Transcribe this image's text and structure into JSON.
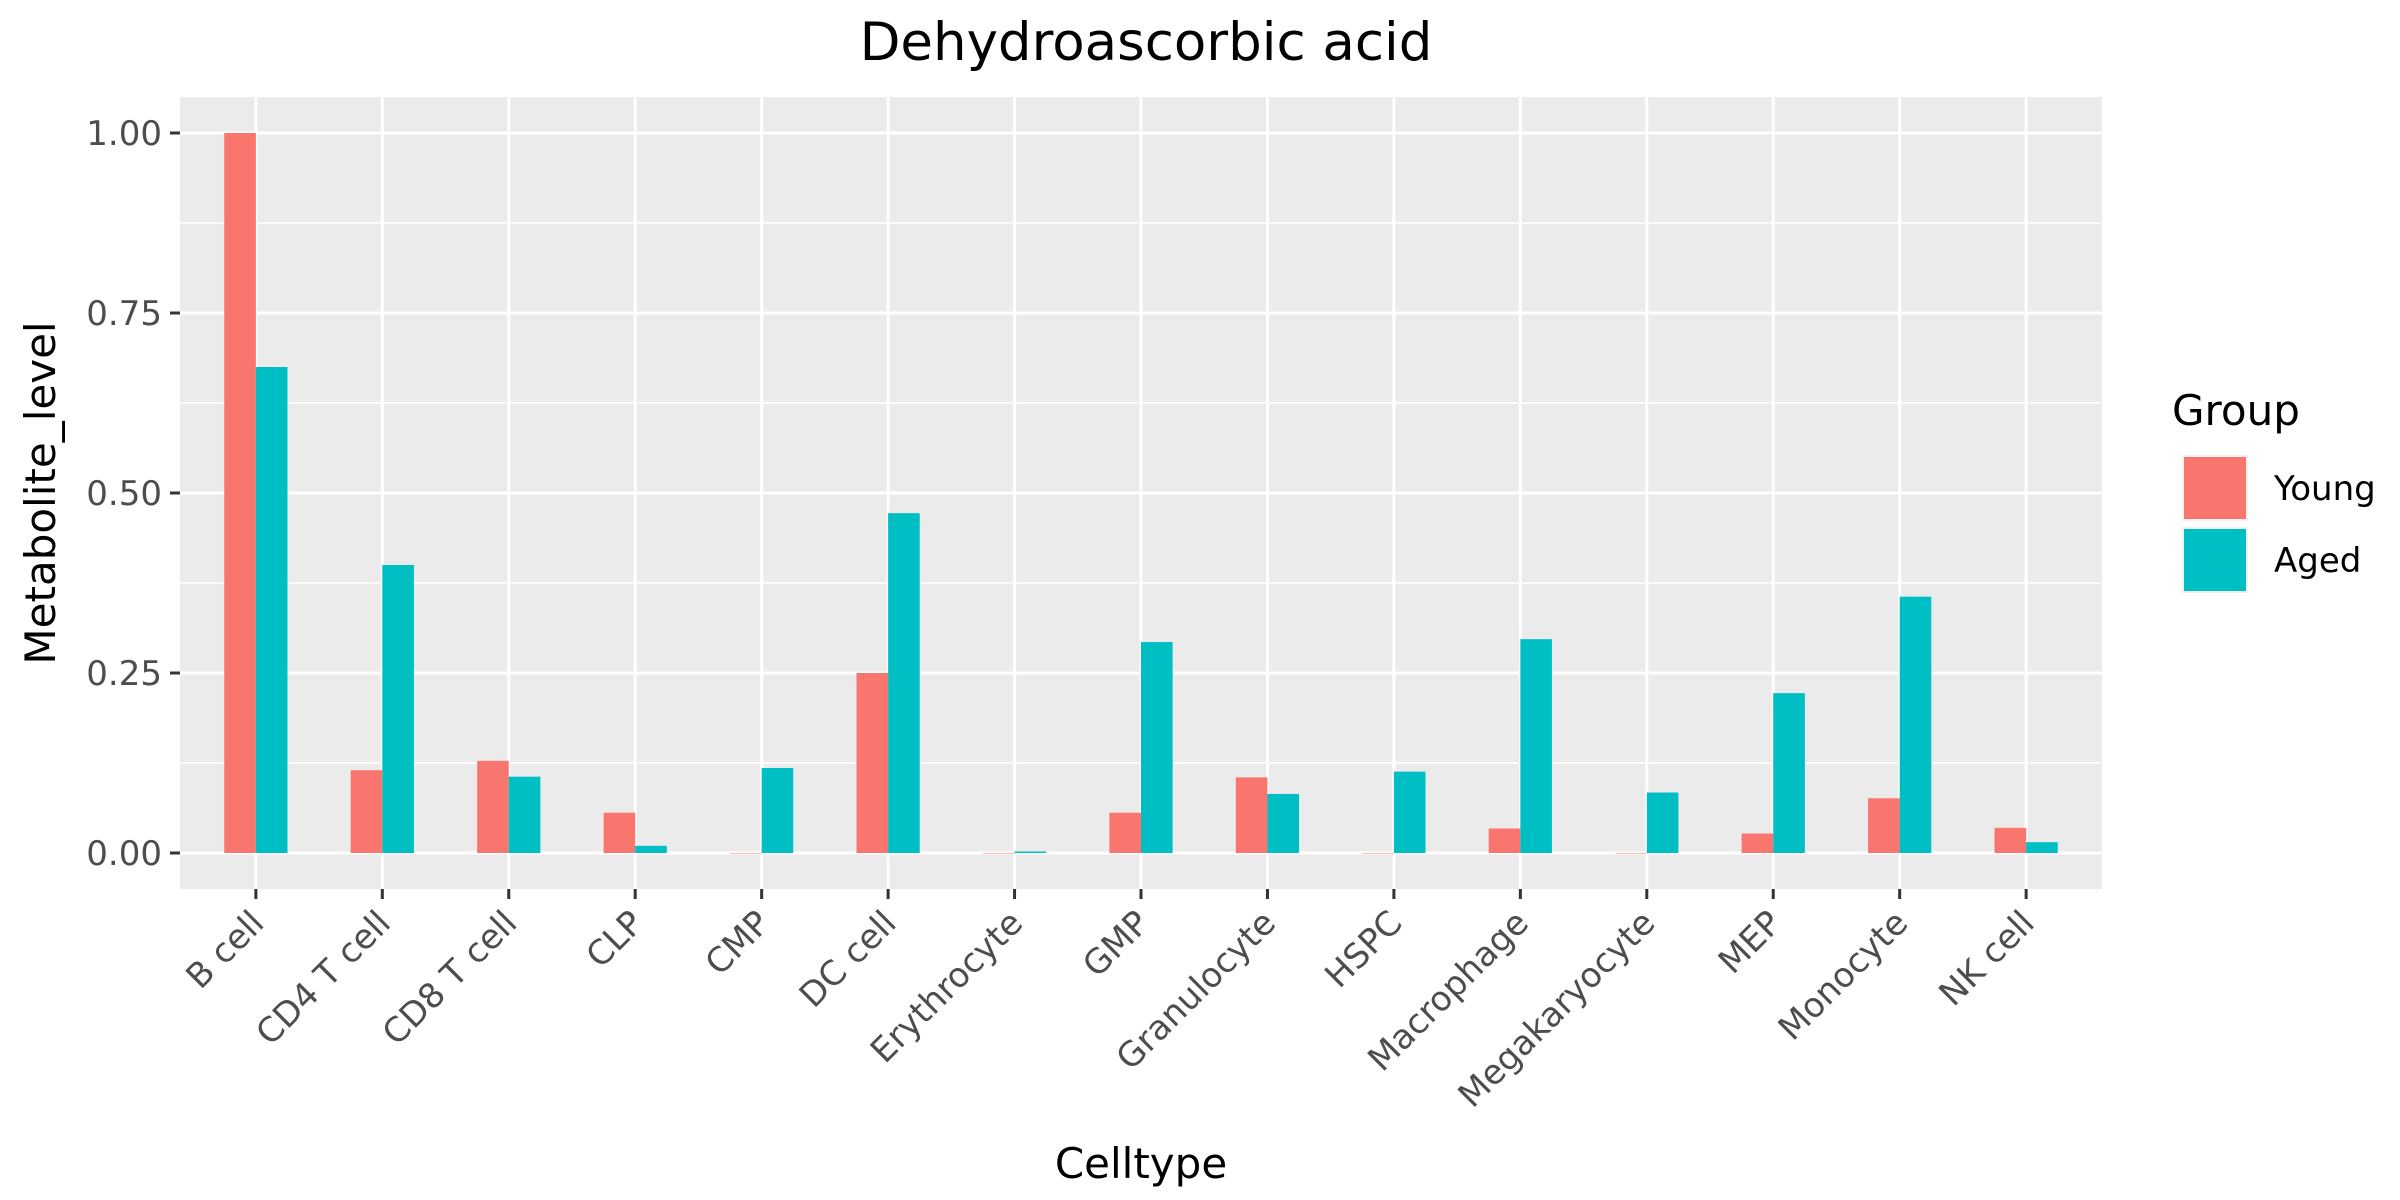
{
  "chart_data": {
    "type": "bar",
    "title": "Dehydroascorbic acid",
    "xlabel": "Celltype",
    "ylabel": "Metabolite_level",
    "categories": [
      "B cell",
      "CD4 T cell",
      "CD8 T cell",
      "CLP",
      "CMP",
      "DC cell",
      "Erythrocyte",
      "GMP",
      "Granulocyte",
      "HSPC",
      "Macrophage",
      "Megakaryocyte",
      "MEP",
      "Monocyte",
      "NK cell"
    ],
    "series": [
      {
        "name": "Young",
        "color": "#F8766D",
        "values": [
          1.0,
          0.115,
          0.128,
          0.056,
          0.0,
          0.25,
          0.0,
          0.056,
          0.105,
          0.0,
          0.034,
          0.0,
          0.027,
          0.076,
          0.035
        ]
      },
      {
        "name": "Aged",
        "color": "#00BFC4",
        "values": [
          0.675,
          0.4,
          0.106,
          0.01,
          0.118,
          0.472,
          0.002,
          0.293,
          0.082,
          0.113,
          0.297,
          0.084,
          0.222,
          0.356,
          0.015
        ]
      }
    ],
    "ylim": [
      -0.05,
      1.05
    ],
    "yticks": [
      0.0,
      0.25,
      0.5,
      0.75,
      1.0
    ],
    "ytick_labels": [
      "0.00",
      "0.25",
      "0.50",
      "0.75",
      "1.00"
    ],
    "grid": true,
    "legend": {
      "title": "Group",
      "position": "right"
    },
    "panel_background": "#EBEBEB"
  }
}
